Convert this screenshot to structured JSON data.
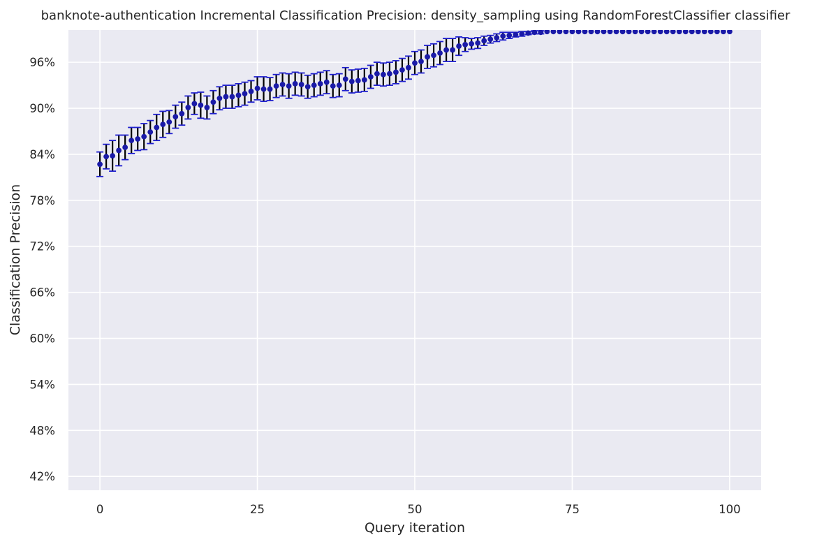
{
  "chart_data": {
    "type": "scatter",
    "title": "banknote-authentication Incremental Classification Precision: density_sampling using RandomForestClassifier classifier",
    "xlabel": "Query iteration",
    "ylabel": "Classification Precision",
    "xlim": [
      -5,
      105
    ],
    "ylim": [
      40.2,
      100.2
    ],
    "xticks": [
      0,
      25,
      50,
      75,
      100
    ],
    "yticks": [
      42,
      48,
      54,
      60,
      66,
      72,
      78,
      84,
      90,
      96
    ],
    "xtick_labels": [
      "0",
      "25",
      "50",
      "75",
      "100"
    ],
    "ytick_labels": [
      "42%",
      "48%",
      "54%",
      "60%",
      "66%",
      "72%",
      "78%",
      "84%",
      "90%",
      "96%"
    ],
    "grid": true,
    "colors": {
      "background": "#eaeaf2",
      "grid": "#ffffff",
      "marker": "#1a1aa8",
      "errorbar": "#000000",
      "cap": "#1f1fcf"
    },
    "series": [
      {
        "x": [
          0,
          1,
          2,
          3,
          4,
          5,
          6,
          7,
          8,
          9,
          10,
          11,
          12,
          13,
          14,
          15,
          16,
          17,
          18,
          19,
          20,
          21,
          22,
          23,
          24,
          25,
          26,
          27,
          28,
          29,
          30,
          31,
          32,
          33,
          34,
          35,
          36,
          37,
          38,
          39,
          40,
          41,
          42,
          43,
          44,
          45,
          46,
          47,
          48,
          49,
          50,
          51,
          52,
          53,
          54,
          55,
          56,
          57,
          58,
          59,
          60,
          61,
          62,
          63,
          64,
          65,
          66,
          67,
          68,
          69,
          70,
          71,
          72,
          73,
          74,
          75,
          76,
          77,
          78,
          79,
          80,
          81,
          82,
          83,
          84,
          85,
          86,
          87,
          88,
          89,
          90,
          91,
          92,
          93,
          94,
          95,
          96,
          97,
          98,
          99,
          100
        ],
        "y": [
          82.7,
          83.7,
          83.8,
          84.5,
          84.9,
          85.8,
          86.0,
          86.3,
          86.9,
          87.5,
          87.9,
          88.2,
          88.9,
          89.3,
          90.1,
          90.6,
          90.4,
          90.1,
          90.8,
          91.3,
          91.5,
          91.5,
          91.7,
          91.9,
          92.2,
          92.6,
          92.5,
          92.5,
          92.9,
          93.1,
          92.9,
          93.2,
          93.1,
          92.8,
          93.0,
          93.2,
          93.4,
          92.9,
          93.0,
          93.8,
          93.5,
          93.6,
          93.7,
          94.1,
          94.5,
          94.4,
          94.5,
          94.7,
          95.0,
          95.3,
          95.9,
          96.1,
          96.7,
          96.9,
          97.2,
          97.6,
          97.6,
          98.1,
          98.3,
          98.4,
          98.5,
          98.8,
          99.0,
          99.2,
          99.4,
          99.5,
          99.6,
          99.7,
          99.8,
          99.9,
          99.9,
          100,
          100,
          100,
          100,
          100,
          100,
          100,
          100,
          100,
          100,
          100,
          100,
          100,
          100,
          100,
          100,
          100,
          100,
          100,
          100,
          100,
          100,
          100,
          100,
          100,
          100,
          100,
          100,
          100,
          100
        ],
        "err": [
          1.6,
          1.6,
          2.0,
          2.0,
          1.6,
          1.7,
          1.5,
          1.7,
          1.5,
          1.7,
          1.7,
          1.5,
          1.5,
          1.5,
          1.5,
          1.4,
          1.7,
          1.5,
          1.5,
          1.5,
          1.5,
          1.5,
          1.5,
          1.5,
          1.4,
          1.5,
          1.6,
          1.5,
          1.5,
          1.5,
          1.6,
          1.5,
          1.5,
          1.5,
          1.5,
          1.5,
          1.5,
          1.5,
          1.5,
          1.5,
          1.5,
          1.5,
          1.5,
          1.5,
          1.5,
          1.5,
          1.5,
          1.5,
          1.5,
          1.5,
          1.5,
          1.5,
          1.5,
          1.5,
          1.5,
          1.5,
          1.5,
          1.2,
          0.9,
          0.7,
          0.7,
          0.6,
          0.5,
          0.5,
          0.5,
          0.4,
          0.3,
          0.3,
          0.2,
          0.2,
          0.2,
          0,
          0,
          0,
          0,
          0,
          0,
          0,
          0,
          0,
          0,
          0,
          0,
          0,
          0,
          0,
          0,
          0,
          0,
          0,
          0,
          0,
          0,
          0,
          0,
          0,
          0,
          0,
          0,
          0,
          0
        ]
      }
    ]
  }
}
